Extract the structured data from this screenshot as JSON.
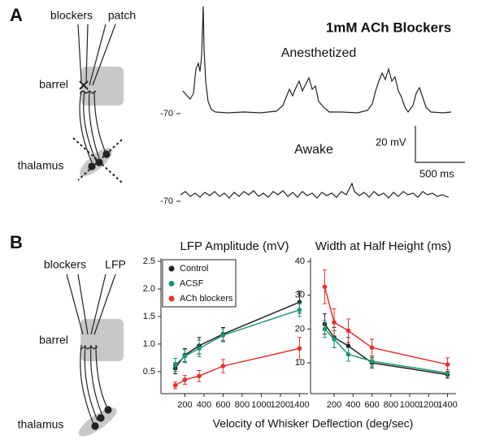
{
  "panels": [
    "A",
    "B"
  ],
  "panel_a": {
    "title": "1mM ACh Blockers",
    "diagram": {
      "electrodes": [
        "blockers",
        "patch"
      ],
      "regions": [
        "barrel",
        "thalamus"
      ]
    },
    "traces": [
      {
        "name": "Anesthetized",
        "baseline_label": "-70"
      },
      {
        "name": "Awake",
        "baseline_label": "-70"
      }
    ],
    "scale_bar": {
      "y_label": "20 mV",
      "x_label": "500 ms"
    }
  },
  "panel_b": {
    "diagram": {
      "electrodes": [
        "blockers",
        "LFP"
      ],
      "regions": [
        "barrel",
        "thalamus"
      ]
    },
    "x_label": "Velocity of Whisker Deflection (deg/sec)"
  },
  "chart_data": [
    {
      "type": "line",
      "title": "LFP Amplitude (mV)",
      "x": [
        100,
        200,
        350,
        600,
        1400
      ],
      "xlim": [
        -50,
        1490
      ],
      "xticks": [
        200,
        400,
        600,
        800,
        1000,
        1200,
        1400
      ],
      "ylim": [
        0.1,
        2.56
      ],
      "yticks": [
        0.5,
        {
          "value": 1,
          "label": "1.0"
        },
        1.5,
        {
          "value": 2,
          "label": "2.0"
        },
        2.5
      ],
      "legend": "upper left",
      "series": [
        {
          "name": "Control",
          "color": "#222222",
          "values": [
            0.56,
            0.8,
            0.97,
            1.18,
            1.76
          ],
          "errors": [
            0.1,
            0.12,
            0.15,
            0.12,
            0.2
          ]
        },
        {
          "name": "ACSF",
          "color": "#1a9a6a",
          "values": [
            0.62,
            0.78,
            0.92,
            1.16,
            1.62
          ],
          "errors": [
            0.12,
            0.12,
            0.15,
            0.12,
            0.12
          ]
        },
        {
          "name": "ACh blockers",
          "color": "#e8302a",
          "values": [
            0.25,
            0.35,
            0.42,
            0.6,
            0.92
          ],
          "errors": [
            0.06,
            0.08,
            0.1,
            0.12,
            0.2
          ]
        }
      ]
    },
    {
      "type": "line",
      "title": "Width at Half Height (ms)",
      "x": [
        100,
        200,
        350,
        600,
        1400
      ],
      "xlim": [
        -50,
        1490
      ],
      "xticks": [
        200,
        400,
        600,
        800,
        1000,
        1200,
        1400
      ],
      "ylim": [
        0.9,
        41
      ],
      "yticks": [
        10,
        20,
        30,
        40
      ],
      "series": [
        {
          "color": "#222222",
          "values": [
            21.5,
            17.5,
            15,
            10,
            6.5
          ],
          "errors": [
            3,
            3,
            2.5,
            1.5,
            1
          ]
        },
        {
          "color": "#1a9a6a",
          "values": [
            20,
            17,
            12.5,
            10.5,
            7
          ],
          "errors": [
            2.5,
            2.5,
            2,
            1.5,
            1
          ]
        },
        {
          "color": "#e8302a",
          "values": [
            32.5,
            22,
            19.5,
            14.5,
            9.5
          ],
          "errors": [
            5,
            4,
            3.5,
            2.5,
            2
          ]
        }
      ]
    }
  ]
}
